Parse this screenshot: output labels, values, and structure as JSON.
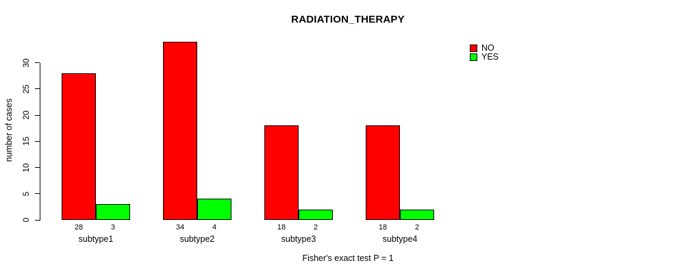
{
  "chart_data": {
    "type": "bar",
    "title": "RADIATION_THERAPY",
    "ylabel": "number of cases",
    "xlabel": "",
    "categories": [
      "subtype1",
      "subtype2",
      "subtype3",
      "subtype4"
    ],
    "series": [
      {
        "name": "NO",
        "color": "#ff0000",
        "values": [
          28,
          34,
          18,
          18
        ]
      },
      {
        "name": "YES",
        "color": "#00ff00",
        "values": [
          3,
          4,
          2,
          2
        ]
      }
    ],
    "bar_value_labels": [
      [
        28,
        3
      ],
      [
        34,
        4
      ],
      [
        18,
        2
      ],
      [
        18,
        2
      ]
    ],
    "yticks": [
      0,
      5,
      10,
      15,
      20,
      25,
      30
    ],
    "ylim": [
      0,
      34
    ],
    "grid": "off",
    "legend_position": "top-right",
    "footnote": "Fisher's exact test P = 1"
  },
  "colors": {
    "axis": "#000000",
    "text": "#000000",
    "background": "#ffffff",
    "bar_no": "#ff0000",
    "bar_yes": "#00ff00"
  }
}
